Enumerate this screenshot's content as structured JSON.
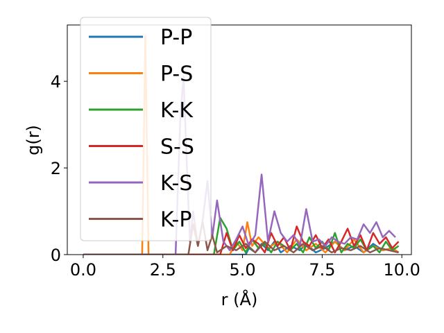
{
  "chart_data": {
    "type": "line",
    "xlabel": "r (Å)",
    "ylabel": "g(r)",
    "xlim": [
      -0.5,
      10.3
    ],
    "ylim": [
      0,
      5.3
    ],
    "xticks": [
      0.0,
      2.5,
      5.0,
      7.5,
      10.0
    ],
    "xtick_labels": [
      "0.0",
      "2.5",
      "5.0",
      "7.5",
      "10.0"
    ],
    "yticks": [
      0,
      2,
      4
    ],
    "ytick_labels": [
      "0",
      "2",
      "4"
    ],
    "grid": false,
    "legend_position": "top-left",
    "series": [
      {
        "name": "P-P",
        "color": "#1f77b4",
        "x": [
          0,
          5.1,
          5.2,
          5.4,
          5.6,
          5.8,
          6.0,
          6.2,
          6.5,
          6.8,
          7.0,
          7.3,
          7.6,
          7.9,
          8.2,
          8.5,
          8.8,
          9.1,
          9.4,
          9.7,
          9.9
        ],
        "y": [
          0,
          0,
          0.15,
          0.05,
          0.25,
          0.1,
          0.3,
          0.05,
          0.2,
          0.1,
          0.25,
          0.05,
          0.15,
          0.3,
          0.1,
          0.2,
          0.05,
          0.25,
          0.1,
          0.15,
          0.05
        ]
      },
      {
        "name": "P-S",
        "color": "#ff7f0e",
        "x": [
          0,
          1.85,
          1.95,
          2.05,
          2.15,
          2.3,
          4.6,
          4.8,
          5.0,
          5.15,
          5.3,
          5.5,
          5.8,
          6.1,
          6.4,
          6.7,
          7.0,
          7.3,
          7.6,
          7.9,
          8.2,
          8.5,
          8.8,
          9.1,
          9.4,
          9.7,
          9.9
        ],
        "y": [
          0,
          0,
          5.05,
          0,
          0,
          0,
          0,
          0.3,
          0.1,
          0.75,
          0.2,
          0.4,
          0.15,
          0.3,
          0.05,
          0.35,
          0.1,
          0.25,
          0.05,
          0.3,
          0.1,
          0.35,
          0.05,
          0.2,
          0.1,
          0.15,
          0.05
        ]
      },
      {
        "name": "K-K",
        "color": "#2ca02c",
        "x": [
          0,
          4.1,
          4.3,
          4.5,
          4.7,
          4.9,
          5.1,
          5.3,
          5.5,
          5.7,
          5.9,
          6.1,
          6.3,
          6.5,
          6.7,
          6.9,
          7.1,
          7.3,
          7.5,
          7.7,
          7.9,
          8.1,
          8.3,
          8.5,
          8.7,
          8.9,
          9.1,
          9.3,
          9.5,
          9.7,
          9.9
        ],
        "y": [
          0,
          0,
          0.85,
          0.6,
          0.1,
          0.3,
          0.05,
          0.35,
          0.15,
          0.25,
          0.05,
          0.3,
          0.2,
          0.1,
          0.25,
          0.05,
          0.4,
          0.15,
          0.3,
          0.1,
          0.5,
          0.05,
          0.25,
          0.15,
          0.35,
          0.1,
          0.2,
          0.05,
          0.3,
          0.1,
          0.2
        ]
      },
      {
        "name": "S-S",
        "color": "#d62728",
        "x": [
          0,
          4.3,
          4.5,
          4.7,
          4.9,
          5.1,
          5.3,
          5.5,
          5.7,
          5.9,
          6.1,
          6.3,
          6.5,
          6.7,
          6.9,
          7.1,
          7.3,
          7.5,
          7.7,
          7.9,
          8.1,
          8.3,
          8.5,
          8.7,
          8.9,
          9.1,
          9.3,
          9.5,
          9.7,
          9.9
        ],
        "y": [
          0,
          0,
          0.5,
          0.1,
          0.45,
          0.15,
          0.35,
          0.25,
          0.05,
          0.5,
          0.2,
          0.4,
          0.1,
          0.65,
          0.3,
          0.2,
          0.45,
          0.15,
          0.35,
          0.05,
          0.3,
          0.6,
          0.2,
          0.45,
          0.1,
          0.5,
          0.25,
          0.4,
          0.15,
          0.3
        ]
      },
      {
        "name": "K-S",
        "color": "#9467bd",
        "x": [
          0,
          2.9,
          3.05,
          3.15,
          3.25,
          3.35,
          3.45,
          3.6,
          3.75,
          3.9,
          4.05,
          4.2,
          4.4,
          4.6,
          4.8,
          5.0,
          5.2,
          5.4,
          5.6,
          5.8,
          6.0,
          6.2,
          6.4,
          6.6,
          6.8,
          7.0,
          7.2,
          7.4,
          7.6,
          7.8,
          8.0,
          8.2,
          8.4,
          8.6,
          8.8,
          9.0,
          9.2,
          9.4,
          9.6,
          9.8
        ],
        "y": [
          0,
          0,
          3.2,
          4.1,
          2.1,
          0.3,
          1.0,
          0.2,
          0.8,
          1.7,
          0.4,
          1.25,
          0.3,
          0.1,
          0.35,
          0.65,
          0.2,
          0.45,
          1.85,
          0.3,
          1.0,
          0.5,
          0.3,
          0.45,
          0.2,
          1.05,
          0.3,
          0.35,
          0.2,
          0.4,
          0.3,
          0.25,
          0.4,
          0.35,
          0.7,
          0.5,
          0.75,
          0.4,
          0.55,
          0.4
        ]
      },
      {
        "name": "K-P",
        "color": "#8c564b",
        "x": [
          0,
          3.3,
          3.45,
          3.6,
          3.75,
          3.9,
          4.05,
          4.2,
          4.5,
          4.8,
          5.1,
          5.4,
          5.7,
          6.0,
          6.3,
          6.6,
          6.9,
          7.2,
          7.5,
          7.8,
          8.1,
          8.4,
          8.7,
          9.0,
          9.3,
          9.6,
          9.9
        ],
        "y": [
          0,
          0,
          0.7,
          0.2,
          0.75,
          0.1,
          0.45,
          0.05,
          0.2,
          0.1,
          0.25,
          0.05,
          0.3,
          0.1,
          0.2,
          0.05,
          0.25,
          0.1,
          0.2,
          0.05,
          0.15,
          0.1,
          0.2,
          0.05,
          0.15,
          0.1,
          0.05
        ]
      }
    ]
  }
}
